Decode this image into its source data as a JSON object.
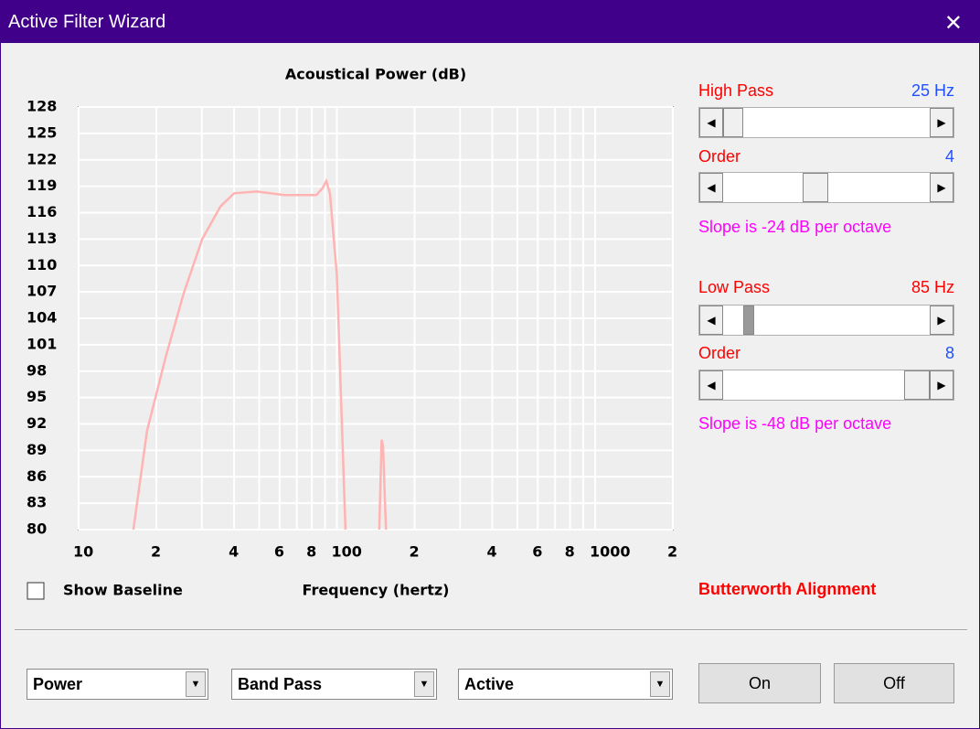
{
  "window": {
    "title": "Active Filter Wizard"
  },
  "chart_data": {
    "type": "line",
    "title": "Acoustical Power (dB)",
    "x_label": "Frequency (hertz)",
    "x": [
      16.3,
      18.4,
      21.7,
      25.5,
      30.1,
      35.4,
      40,
      49,
      62.5,
      83.2,
      88.1,
      91,
      94,
      100,
      108,
      null,
      146,
      149,
      151,
      155
    ],
    "values": [
      80,
      91.2,
      99.5,
      106.8,
      113,
      116.7,
      118.2,
      118.4,
      118,
      118,
      118.8,
      119.6,
      118.2,
      108.9,
      80,
      null,
      80,
      90.2,
      89.5,
      80
    ],
    "color": "#ffb3b3",
    "xlim": [
      10,
      2000
    ],
    "log_x": true,
    "xticks": [
      10,
      {
        "value": 20,
        "label": "2"
      },
      {
        "value": 40,
        "label": "4"
      },
      {
        "value": 60,
        "label": "6"
      },
      {
        "value": 80,
        "label": "8"
      },
      100,
      {
        "value": 200,
        "label": "2"
      },
      {
        "value": 400,
        "label": "4"
      },
      {
        "value": 600,
        "label": "6"
      },
      {
        "value": 800,
        "label": "8"
      },
      1000,
      {
        "value": 2000,
        "label": "2"
      }
    ],
    "x_minor_grid": [
      30,
      50,
      70,
      90,
      300,
      500,
      700,
      900
    ],
    "ylim": [
      80,
      128
    ],
    "yticks": [
      80,
      83,
      86,
      89,
      92,
      95,
      98,
      101,
      104,
      107,
      110,
      113,
      116,
      119,
      122,
      125,
      128
    ],
    "grid": true
  },
  "checkbox": {
    "label": "Show Baseline"
  },
  "high_pass": {
    "label": "High Pass",
    "value": "25 Hz",
    "order_label": "Order",
    "order": "4",
    "slope": "Slope is -24 dB per octave"
  },
  "low_pass": {
    "label": "Low Pass",
    "value": "85 Hz",
    "order_label": "Order",
    "order": "8",
    "slope": "Slope is -48 dB per octave"
  },
  "alignment": "Butterworth Alignment",
  "dropdowns": [
    "Power",
    "Band Pass",
    "Active"
  ],
  "buttons": [
    "On",
    "Off"
  ]
}
